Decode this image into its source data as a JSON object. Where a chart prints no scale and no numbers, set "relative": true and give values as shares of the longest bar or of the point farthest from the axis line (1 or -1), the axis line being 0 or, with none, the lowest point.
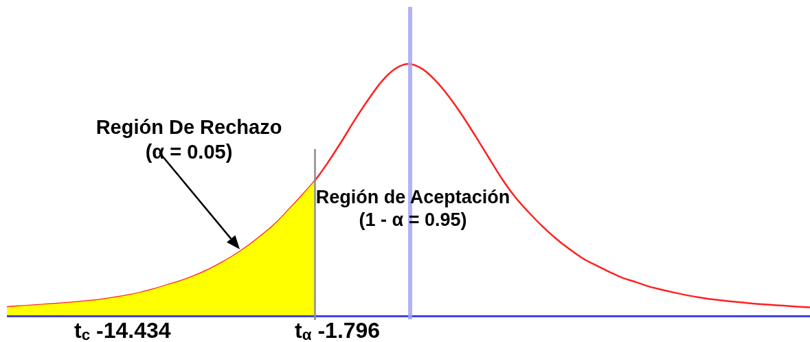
{
  "chart_data": {
    "type": "line",
    "relative": true,
    "marker": "none",
    "categories": [
      null,
      null,
      null,
      null,
      null,
      null,
      null,
      null,
      null,
      null,
      null,
      null,
      null,
      null,
      null,
      null,
      null,
      null,
      null,
      null,
      null,
      null,
      null,
      null,
      null,
      null,
      null,
      null,
      null,
      null,
      null,
      null,
      null,
      null,
      null,
      null,
      null,
      null,
      null,
      null,
      null,
      null,
      null,
      null,
      null,
      null,
      null,
      null,
      null,
      null,
      null,
      null,
      null,
      null,
      null,
      null,
      null,
      null,
      null,
      null,
      null
    ],
    "series": [
      {
        "type": "area",
        "color": "#ffff00",
        "values": [
          0.035,
          0.039,
          0.042,
          0.046,
          0.05,
          0.054,
          0.059,
          0.065,
          0.073,
          0.082,
          0.093,
          0.107,
          0.123,
          0.139,
          0.159,
          0.182,
          0.21,
          0.241,
          0.277,
          0.318,
          0.363,
          0.418,
          0.475,
          0.536,
          null,
          null,
          null,
          null,
          null,
          null,
          null,
          null,
          null,
          null,
          null,
          null,
          null,
          null,
          null,
          null,
          null,
          null,
          null,
          null,
          null,
          null,
          null,
          null,
          null,
          null,
          null,
          null,
          null,
          null,
          null,
          null,
          null,
          null,
          null,
          null,
          null
        ]
      },
      {
        "type": "line",
        "color": "#ff2020",
        "values": [
          0.035,
          0.039,
          0.042,
          0.046,
          0.05,
          0.054,
          0.059,
          0.065,
          0.073,
          0.082,
          0.093,
          0.107,
          0.123,
          0.139,
          0.159,
          0.182,
          0.21,
          0.241,
          0.277,
          0.318,
          0.363,
          0.418,
          0.475,
          0.536,
          0.61,
          0.692,
          0.778,
          0.858,
          0.93,
          0.98,
          1,
          0.981,
          0.935,
          0.872,
          0.797,
          0.714,
          0.628,
          0.543,
          0.47,
          0.41,
          0.356,
          0.308,
          0.266,
          0.229,
          0.201,
          0.175,
          0.151,
          0.134,
          0.116,
          0.103,
          0.091,
          0.08,
          0.071,
          0.064,
          0.058,
          0.053,
          0.048,
          0.044,
          0.041,
          0.037,
          0.034
        ]
      }
    ],
    "annotations": [
      "Región De Rechazo",
      "(α = 0.05)",
      "Región de Aceptación",
      "(1 - α = 0.95)",
      "t$_{c}$ -14.434",
      "t$_{α}$ -1.796"
    ]
  }
}
